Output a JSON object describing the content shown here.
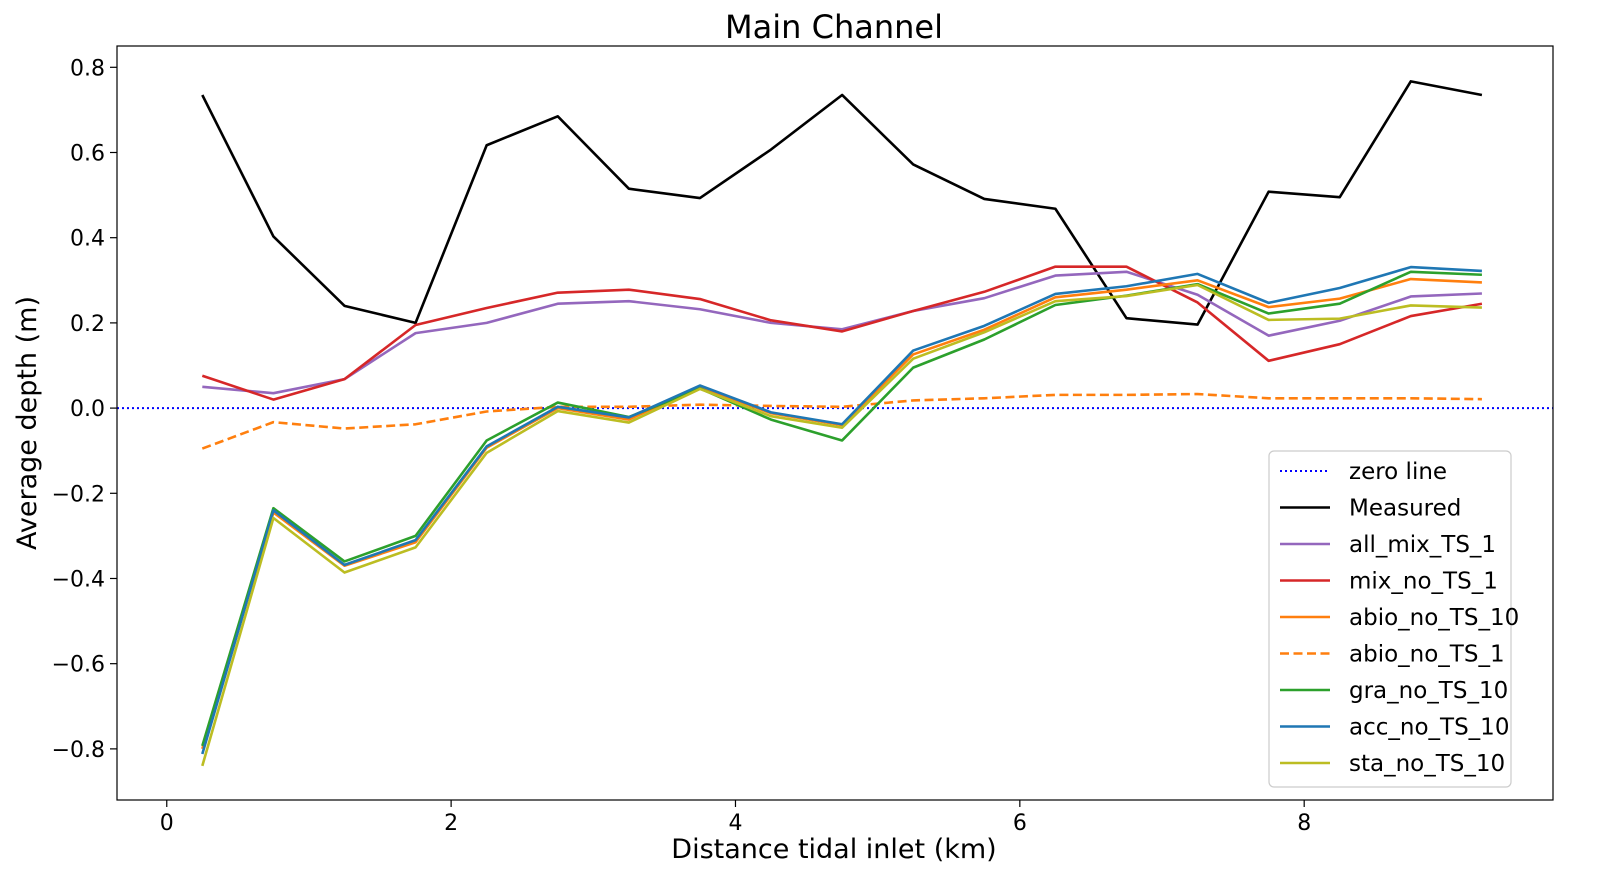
{
  "chart_data": {
    "type": "line",
    "title": "Main Channel",
    "xlabel": "Distance tidal inlet (km)",
    "ylabel": "Average depth (m)",
    "xlim": [
      -0.35,
      9.75
    ],
    "ylim": [
      -0.92,
      0.85
    ],
    "xticks": [
      0,
      2,
      4,
      6,
      8
    ],
    "xtick_labels": [
      "0",
      "2",
      "4",
      "6",
      "8"
    ],
    "yticks": [
      -0.8,
      -0.6,
      -0.4,
      -0.2,
      0.0,
      0.2,
      0.4,
      0.6,
      0.8
    ],
    "ytick_labels": [
      "−0.8",
      "−0.6",
      "−0.4",
      "−0.2",
      "0.0",
      "0.2",
      "0.4",
      "0.6",
      "0.8"
    ],
    "grid": false,
    "legend_position": "lower-right",
    "x": [
      0.25,
      0.75,
      1.25,
      1.75,
      2.25,
      2.75,
      3.25,
      3.75,
      4.25,
      4.75,
      5.25,
      5.75,
      6.25,
      6.75,
      7.25,
      7.75,
      8.25,
      8.75,
      9.25
    ],
    "reference_line": {
      "name": "zero line",
      "y": 0.0,
      "color": "#0000ff",
      "style": "dotted"
    },
    "series": [
      {
        "name": "Measured",
        "color": "#000000",
        "style": "solid",
        "values": [
          0.735,
          0.403,
          0.24,
          0.2,
          0.617,
          0.685,
          0.515,
          0.493,
          0.607,
          0.735,
          0.572,
          0.491,
          0.468,
          0.211,
          0.196,
          0.508,
          0.495,
          0.767,
          0.735
        ]
      },
      {
        "name": "all_mix_TS_1",
        "color": "#9467bd",
        "style": "solid",
        "values": [
          0.05,
          0.035,
          0.068,
          0.176,
          0.2,
          0.245,
          0.251,
          0.232,
          0.2,
          0.185,
          0.228,
          0.258,
          0.311,
          0.32,
          0.266,
          0.17,
          0.205,
          0.262,
          0.269
        ]
      },
      {
        "name": "mix_no_TS_1",
        "color": "#d62728",
        "style": "solid",
        "values": [
          0.076,
          0.02,
          0.068,
          0.195,
          0.235,
          0.271,
          0.278,
          0.256,
          0.206,
          0.18,
          0.228,
          0.273,
          0.332,
          0.332,
          0.248,
          0.111,
          0.15,
          0.216,
          0.245
        ]
      },
      {
        "name": "abio_no_TS_10",
        "color": "#ff7f0e",
        "style": "solid",
        "values": [
          -0.8,
          -0.245,
          -0.37,
          -0.315,
          -0.093,
          0.0,
          -0.027,
          0.05,
          -0.012,
          -0.04,
          0.126,
          0.184,
          0.26,
          0.278,
          0.3,
          0.237,
          0.257,
          0.303,
          0.295
        ]
      },
      {
        "name": "abio_no_TS_1",
        "color": "#ff7f0e",
        "style": "dashed",
        "values": [
          -0.095,
          -0.033,
          -0.048,
          -0.038,
          -0.008,
          0.003,
          0.003,
          0.008,
          0.005,
          0.003,
          0.018,
          0.023,
          0.031,
          0.031,
          0.033,
          0.023,
          0.023,
          0.023,
          0.021
        ]
      },
      {
        "name": "gra_no_TS_10",
        "color": "#2ca02c",
        "style": "solid",
        "values": [
          -0.793,
          -0.235,
          -0.36,
          -0.3,
          -0.076,
          0.013,
          -0.021,
          0.046,
          -0.027,
          -0.076,
          0.095,
          0.161,
          0.242,
          0.264,
          0.291,
          0.222,
          0.245,
          0.32,
          0.313
        ]
      },
      {
        "name": "acc_no_TS_10",
        "color": "#1f77b4",
        "style": "solid",
        "values": [
          -0.812,
          -0.24,
          -0.368,
          -0.31,
          -0.09,
          0.003,
          -0.022,
          0.053,
          -0.01,
          -0.038,
          0.135,
          0.193,
          0.268,
          0.286,
          0.315,
          0.247,
          0.282,
          0.331,
          0.322
        ]
      },
      {
        "name": "sta_no_TS_10",
        "color": "#bcbd22",
        "style": "solid",
        "values": [
          -0.84,
          -0.258,
          -0.386,
          -0.327,
          -0.105,
          -0.007,
          -0.034,
          0.045,
          -0.019,
          -0.046,
          0.116,
          0.178,
          0.251,
          0.263,
          0.289,
          0.207,
          0.21,
          0.241,
          0.236
        ]
      }
    ]
  }
}
